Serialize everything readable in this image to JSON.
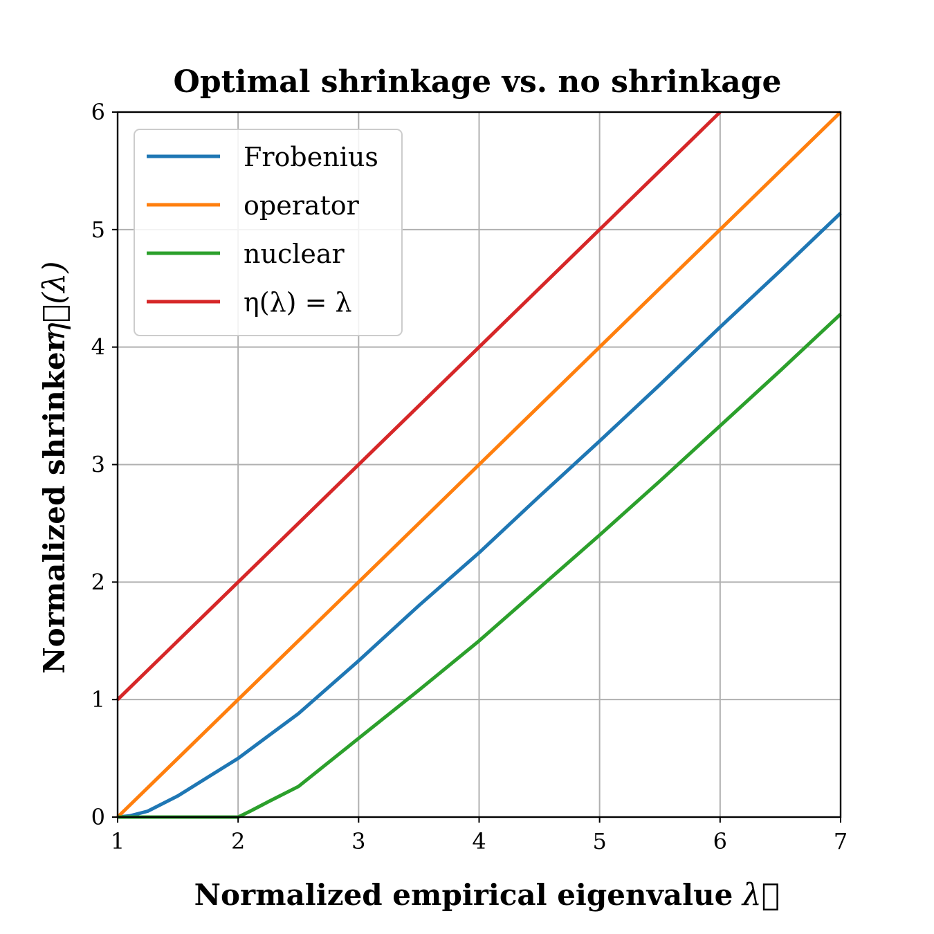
{
  "chart_data": {
    "type": "line",
    "title": "Optimal shrinkage vs. no shrinkage",
    "xlabel": "Normalized empirical eigenvalue",
    "xlabel_symbol": "λ⃗",
    "ylabel": "Normalized shrinker",
    "ylabel_symbol": "η⃗(λ)",
    "xlim": [
      1,
      7
    ],
    "ylim": [
      0,
      6
    ],
    "xticks": [
      "1",
      "2",
      "3",
      "4",
      "5",
      "6",
      "7"
    ],
    "yticks": [
      "0",
      "1",
      "2",
      "3",
      "4",
      "5",
      "6"
    ],
    "grid": true,
    "legend_position": "top-left",
    "series": [
      {
        "name": "Frobenius",
        "color": "#1f77b4",
        "x": [
          1.0,
          1.1,
          1.25,
          1.5,
          1.75,
          2.0,
          2.25,
          2.5,
          3.0,
          3.5,
          4.0,
          4.5,
          5.0,
          5.5,
          6.0,
          6.5,
          7.0
        ],
        "y": [
          0.0,
          0.01,
          0.05,
          0.18,
          0.34,
          0.5,
          0.69,
          0.88,
          1.33,
          1.8,
          2.25,
          2.73,
          3.2,
          3.68,
          4.17,
          4.65,
          5.14
        ]
      },
      {
        "name": "operator",
        "color": "#ff7f0e",
        "x": [
          1,
          7
        ],
        "y": [
          0,
          6
        ]
      },
      {
        "name": "nuclear",
        "color": "#2ca02c",
        "x": [
          1.0,
          2.0,
          2.1,
          2.25,
          2.5,
          3.0,
          3.5,
          4.0,
          4.5,
          5.0,
          5.5,
          6.0,
          6.5,
          7.0
        ],
        "y": [
          0.0,
          0.0,
          0.05,
          0.13,
          0.26,
          0.67,
          1.08,
          1.5,
          1.95,
          2.4,
          2.86,
          3.33,
          3.8,
          4.28
        ]
      },
      {
        "name": "η(λ) = λ",
        "color": "#d62728",
        "x": [
          1,
          6
        ],
        "y": [
          1,
          6
        ]
      }
    ]
  }
}
